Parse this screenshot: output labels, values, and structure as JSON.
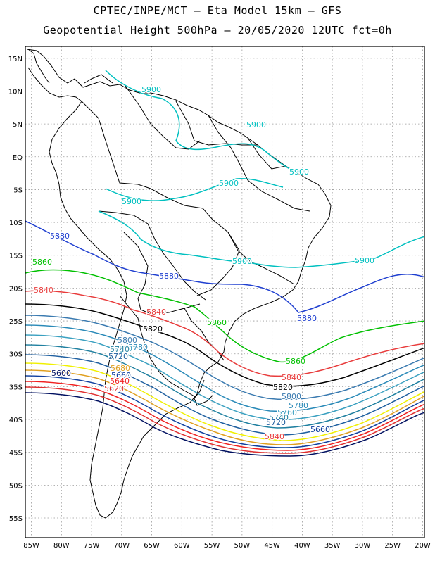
{
  "title_line1": "CPTEC/INPE/MCT –  Eta Model 15km – GFS",
  "title_line2": "Geopotential Height 500hPa – 20/05/2020 12UTC fct=0h",
  "lat_ticks": [
    "15N",
    "10N",
    "5N",
    "EQ",
    "5S",
    "10S",
    "15S",
    "20S",
    "25S",
    "30S",
    "35S",
    "40S",
    "45S",
    "50S",
    "55S"
  ],
  "lon_ticks": [
    "85W",
    "80W",
    "75W",
    "70W",
    "65W",
    "60W",
    "55W",
    "50W",
    "45W",
    "40W",
    "35W",
    "30W",
    "25W",
    "20W"
  ],
  "colors": {
    "5900": "#00c0c0",
    "5880": "#1f3fd0",
    "5860": "#00c000",
    "5840": "#e83c3c",
    "5820": "#000000",
    "5800": "#3a7ab0",
    "5780": "#2a8ab8",
    "5760": "#3aa0c0",
    "5740": "#2080a0",
    "5720": "#2060a0",
    "5700": "#f0f000",
    "5680": "#e0a020",
    "5660": "#1040a0",
    "5640": "#f02020",
    "5620": "#e03030",
    "5600": "#001060"
  },
  "contour_labels": [
    {
      "text": "5900",
      "level": "5900"
    },
    {
      "text": "5900",
      "level": "5900"
    },
    {
      "text": "5900",
      "level": "5900"
    },
    {
      "text": "5900",
      "level": "5900"
    },
    {
      "text": "5900",
      "level": "5900"
    },
    {
      "text": "5900",
      "level": "5900"
    },
    {
      "text": "5900",
      "level": "5900"
    },
    {
      "text": "5880",
      "level": "5880"
    },
    {
      "text": "5880",
      "level": "5880"
    },
    {
      "text": "5880",
      "level": "5880"
    },
    {
      "text": "5860",
      "level": "5860"
    },
    {
      "text": "5860",
      "level": "5860"
    },
    {
      "text": "5860",
      "level": "5860"
    },
    {
      "text": "5840",
      "level": "5840"
    },
    {
      "text": "5840",
      "level": "5840"
    },
    {
      "text": "5840",
      "level": "5840"
    },
    {
      "text": "5820",
      "level": "5820"
    },
    {
      "text": "5820",
      "level": "5820"
    },
    {
      "text": "5800",
      "level": "5800"
    },
    {
      "text": "5800",
      "level": "5800"
    },
    {
      "text": "5780",
      "level": "5780"
    },
    {
      "text": "5780",
      "level": "5780"
    },
    {
      "text": "5760",
      "level": "5760"
    },
    {
      "text": "5760",
      "level": "5760"
    },
    {
      "text": "5740",
      "level": "5740"
    },
    {
      "text": "5740",
      "level": "5740"
    },
    {
      "text": "5720",
      "level": "5720"
    },
    {
      "text": "5720",
      "level": "5720"
    },
    {
      "text": "5680",
      "level": "5680"
    },
    {
      "text": "5660",
      "level": "5660"
    },
    {
      "text": "5660",
      "level": "5660"
    },
    {
      "text": "5640",
      "level": "5640"
    },
    {
      "text": "5840",
      "level": "5840"
    },
    {
      "text": "5620",
      "level": "5620"
    },
    {
      "text": "5600",
      "level": "5600"
    }
  ]
}
